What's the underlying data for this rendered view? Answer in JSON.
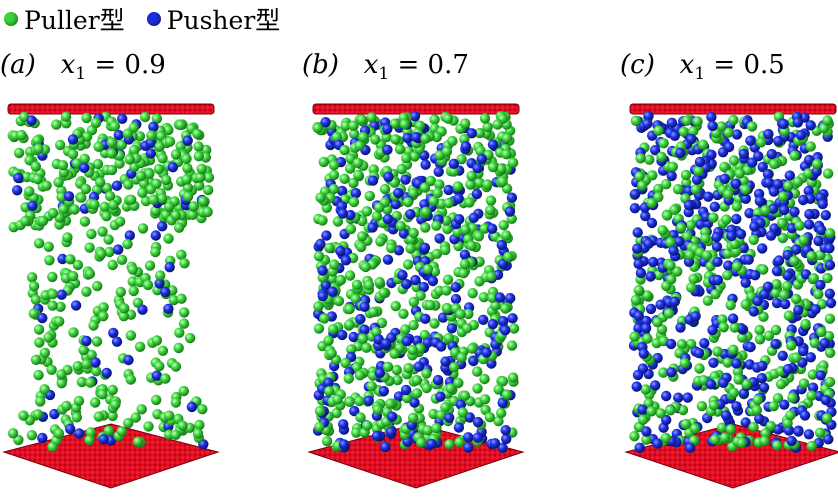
{
  "legend": {
    "puller": {
      "label": "Puller型",
      "color": "#39d339"
    },
    "pusher": {
      "label": "Pusher型",
      "color": "#1a2fe0"
    }
  },
  "panels": [
    {
      "tag": "(a)",
      "var": "x",
      "sub": "1",
      "rel": "= 0.9",
      "fraction_puller": 0.9
    },
    {
      "tag": "(b)",
      "var": "x",
      "sub": "1",
      "rel": "= 0.7",
      "fraction_puller": 0.7
    },
    {
      "tag": "(c)",
      "var": "x",
      "sub": "1",
      "rel": "= 0.5",
      "fraction_puller": 0.5
    }
  ],
  "colors": {
    "wall": "#d0021b",
    "wall_dark": "#8a0010"
  }
}
